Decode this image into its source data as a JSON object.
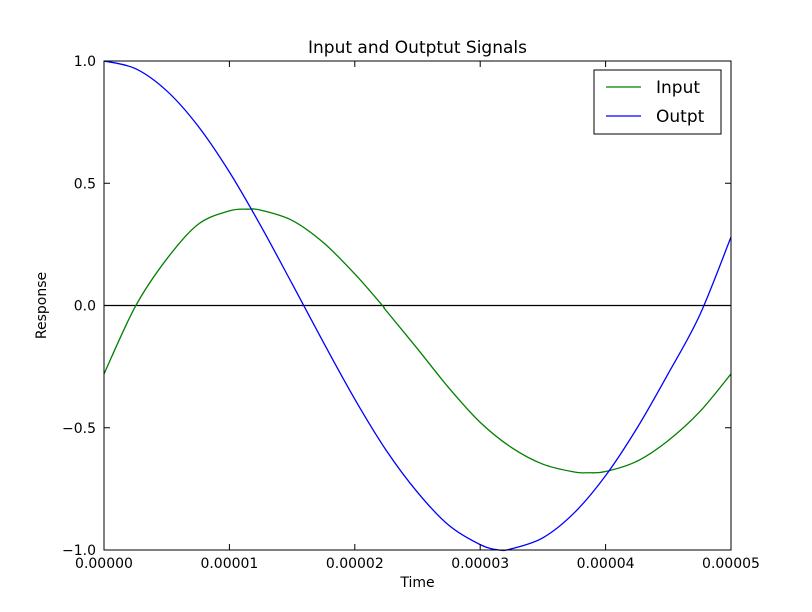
{
  "chart_data": {
    "type": "line",
    "title": "Input and Outptut Signals",
    "xlabel": "Time",
    "ylabel": "Response",
    "xlim": [
      0,
      5e-05
    ],
    "ylim": [
      -1.0,
      1.0
    ],
    "x_ticks": [
      0,
      1e-05,
      2e-05,
      3e-05,
      4e-05,
      5e-05
    ],
    "x_tick_labels": [
      "0.00000",
      "0.00001",
      "0.00002",
      "0.00003",
      "0.00004",
      "0.00005"
    ],
    "y_ticks": [
      -1.0,
      -0.5,
      0.0,
      0.5,
      1.0
    ],
    "y_tick_labels": [
      "−1.0",
      "−0.5",
      "0.0",
      "0.5",
      "1.0"
    ],
    "grid": false,
    "legend_position": "top-right",
    "zero_line": 0.0,
    "series": [
      {
        "name": "Input",
        "color": "#008000",
        "x": [
          0,
          2.5e-06,
          5e-06,
          7.5e-06,
          1e-05,
          1.15e-05,
          1.25e-05,
          1.5e-05,
          1.75e-05,
          2e-05,
          2.22e-05,
          2.25e-05,
          2.5e-05,
          2.75e-05,
          3e-05,
          3.25e-05,
          3.5e-05,
          3.75e-05,
          3.85e-05,
          4e-05,
          4.25e-05,
          4.5e-05,
          4.75e-05,
          5e-05
        ],
        "y": [
          -0.28,
          -0.004,
          0.19,
          0.332,
          0.387,
          0.394,
          0.39,
          0.348,
          0.257,
          0.129,
          0.0,
          -0.021,
          -0.177,
          -0.337,
          -0.478,
          -0.581,
          -0.649,
          -0.681,
          -0.684,
          -0.679,
          -0.637,
          -0.552,
          -0.435,
          -0.28
        ]
      },
      {
        "name": "Outpt",
        "color": "#0000ff",
        "x": [
          0,
          2.5e-06,
          5e-06,
          7.5e-06,
          1e-05,
          1.25e-05,
          1.5e-05,
          1.75e-05,
          2e-05,
          2.25e-05,
          2.5e-05,
          2.75e-05,
          3e-05,
          3.15e-05,
          3.25e-05,
          3.5e-05,
          3.75e-05,
          4e-05,
          4.25e-05,
          4.5e-05,
          4.75e-05,
          5e-05
        ],
        "y": [
          1.0,
          0.969,
          0.878,
          0.734,
          0.546,
          0.326,
          0.089,
          -0.151,
          -0.383,
          -0.592,
          -0.764,
          -0.899,
          -0.978,
          -1.0,
          -0.995,
          -0.95,
          -0.848,
          -0.696,
          -0.502,
          -0.278,
          -0.04,
          0.28
        ]
      }
    ]
  }
}
